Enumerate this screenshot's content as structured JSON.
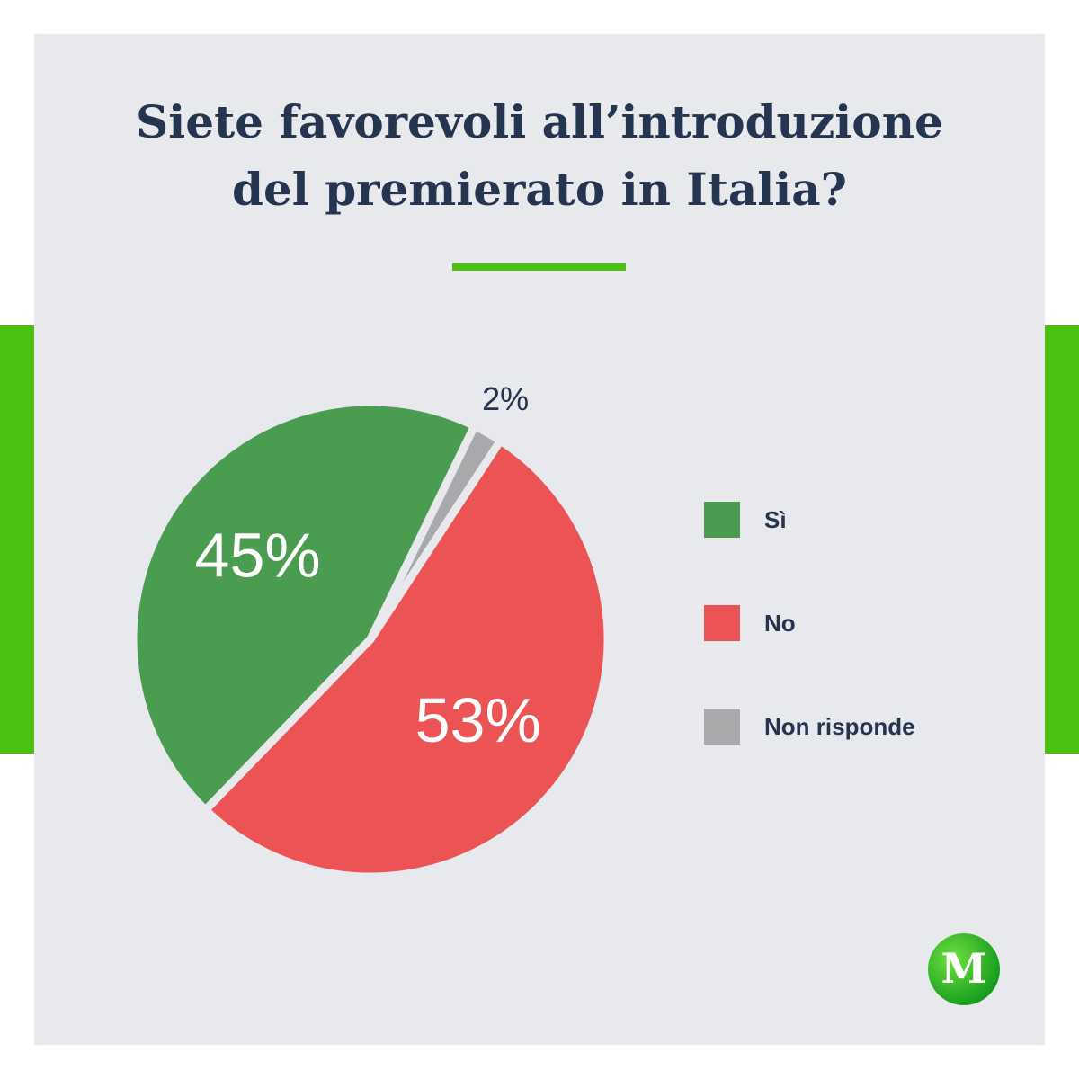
{
  "chart_data": {
    "type": "pie",
    "title": [
      "Siete favorevoli all’introduzione",
      "del premierato in Italia?"
    ],
    "categories": [
      "Sì",
      "Non risponde",
      "No"
    ],
    "values": [
      45,
      2,
      53
    ],
    "value_labels": [
      "45%",
      "2%",
      "53%"
    ],
    "colors": [
      "#4a9c50",
      "#a8a9ab",
      "#ec5355"
    ],
    "legend": "right",
    "legend_order": [
      0,
      2,
      1
    ]
  },
  "logo": "M"
}
